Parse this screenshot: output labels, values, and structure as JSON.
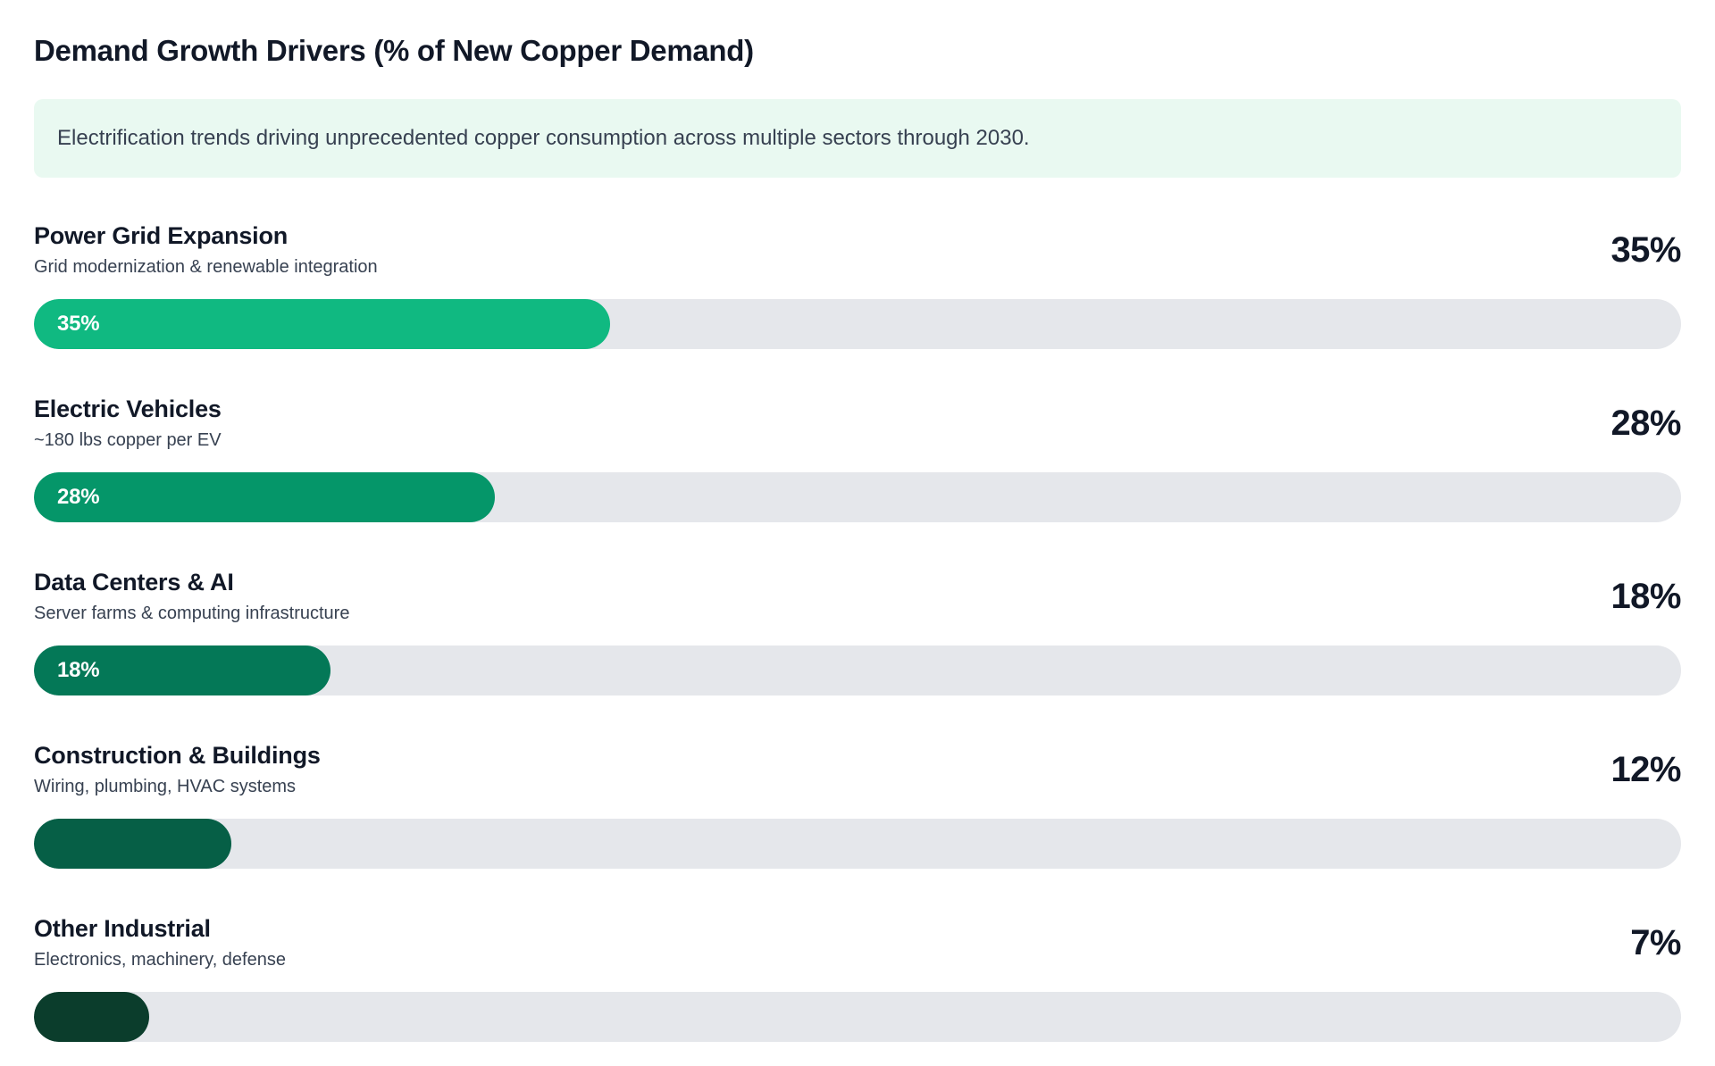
{
  "page": {
    "title": "Demand Growth Drivers (% of New Copper Demand)",
    "banner_text": "Electrification trends driving unprecedented copper consumption across multiple sectors through 2030."
  },
  "chart_data": {
    "type": "bar",
    "orientation": "horizontal",
    "title": "Demand Growth Drivers (% of New Copper Demand)",
    "subtitle": "Electrification trends driving unprecedented copper consumption across multiple sectors through 2030.",
    "categories": [
      "Power Grid Expansion",
      "Electric Vehicles",
      "Data Centers & AI",
      "Construction & Buildings",
      "Other Industrial"
    ],
    "values": [
      35,
      28,
      18,
      12,
      7
    ],
    "unit": "%",
    "xlim": [
      0,
      100
    ],
    "grid": false,
    "legend": "none",
    "track_color": "#e5e7eb",
    "banner_color": "#e9f9f1",
    "items": [
      {
        "label": "Power Grid Expansion",
        "sublabel": "Grid modernization & renewable integration",
        "value": 35,
        "value_label": "35%",
        "inline_label": "35%",
        "color": "#10b981"
      },
      {
        "label": "Electric Vehicles",
        "sublabel": "~180 lbs copper per EV",
        "value": 28,
        "value_label": "28%",
        "inline_label": "28%",
        "color": "#059669"
      },
      {
        "label": "Data Centers & AI",
        "sublabel": "Server farms & computing infrastructure",
        "value": 18,
        "value_label": "18%",
        "inline_label": "18%",
        "color": "#047857"
      },
      {
        "label": "Construction & Buildings",
        "sublabel": "Wiring, plumbing, HVAC systems",
        "value": 12,
        "value_label": "12%",
        "inline_label": "",
        "color": "#065f46"
      },
      {
        "label": "Other Industrial",
        "sublabel": "Electronics, machinery, defense",
        "value": 7,
        "value_label": "7%",
        "inline_label": "",
        "color": "#0b3d2c"
      }
    ]
  }
}
